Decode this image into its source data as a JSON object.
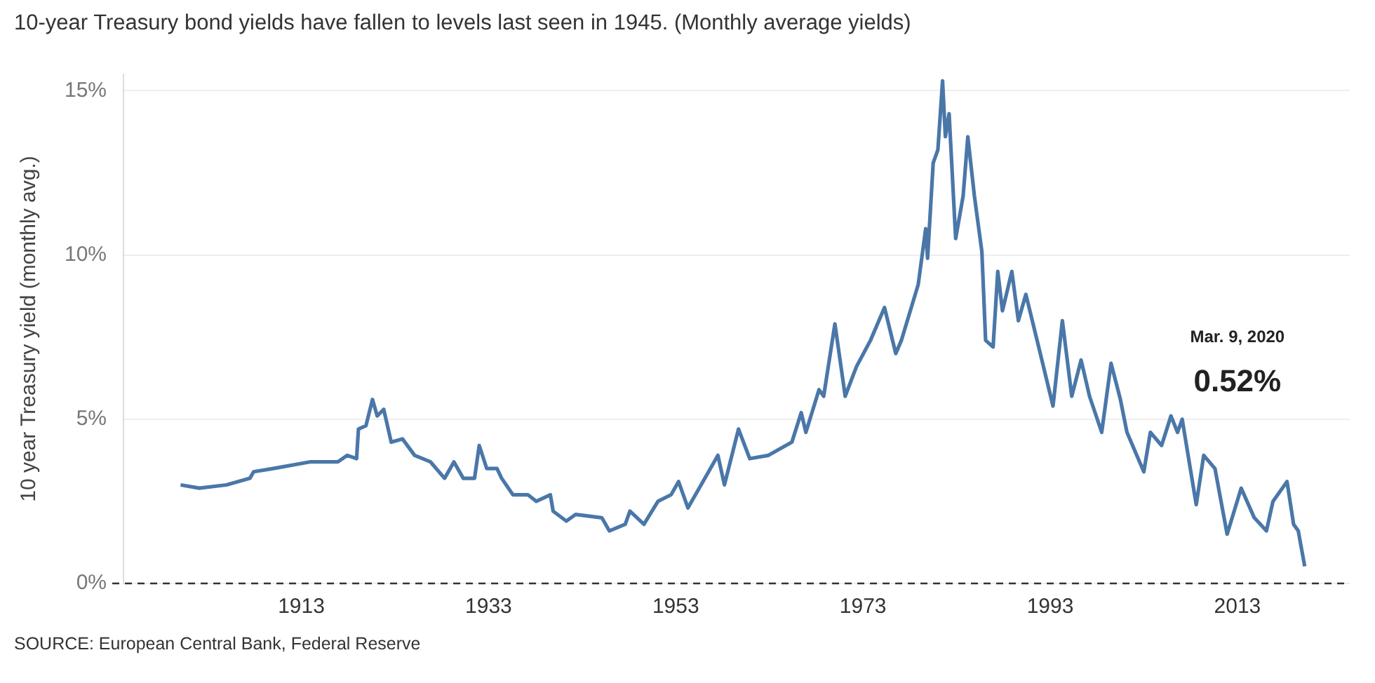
{
  "chart_data": {
    "type": "line",
    "title": "10-year Treasury bond yields have fallen to levels last seen in 1945. (Monthly average yields)",
    "ylabel": "10 year Treasury yield (monthly avg.)",
    "annotations": [
      "Mar. 9, 2020",
      "0.52%",
      "SOURCE: European Central Bank, Federal Reserve"
    ],
    "x": [
      1900.1,
      1902.1,
      1905.0,
      1907.5,
      1907.9,
      1910.0,
      1913.9,
      1916.9,
      1917.9,
      1918.9,
      1919.1,
      1919.9,
      1920.6,
      1921.1,
      1921.8,
      1922.6,
      1923.8,
      1925.1,
      1926.8,
      1928.3,
      1929.3,
      1930.3,
      1931.5,
      1932.0,
      1932.8,
      1933.9,
      1934.4,
      1935.6,
      1937.2,
      1938.1,
      1939.6,
      1939.9,
      1941.3,
      1942.3,
      1945.1,
      1945.9,
      1947.6,
      1948.1,
      1949.6,
      1951.1,
      1952.5,
      1953.3,
      1954.3,
      1955.5,
      1957.5,
      1958.2,
      1959.7,
      1960.9,
      1962.9,
      1965.4,
      1966.4,
      1966.9,
      1968.3,
      1968.8,
      1970.0,
      1971.1,
      1972.3,
      1973.8,
      1975.3,
      1976.5,
      1977.1,
      1978.9,
      1979.7,
      1979.9,
      1980.5,
      1981.0,
      1981.5,
      1981.8,
      1982.2,
      1982.9,
      1983.7,
      1984.2,
      1984.9,
      1985.7,
      1986.1,
      1986.9,
      1987.4,
      1987.9,
      1988.9,
      1989.6,
      1990.4,
      1991.6,
      1993.3,
      1994.3,
      1995.3,
      1996.3,
      1997.2,
      1998.5,
      1999.5,
      2000.5,
      2001.2,
      2003.0,
      2003.7,
      2004.9,
      2005.9,
      2006.6,
      2007.1,
      2008.6,
      2009.4,
      2010.6,
      2011.9,
      2013.4,
      2014.8,
      2016.1,
      2016.8,
      2018.3,
      2019.0,
      2019.5,
      2020.19
    ],
    "series": [
      {
        "color": "#4a77a8",
        "values": [
          3.0,
          2.9,
          3.0,
          3.2,
          3.4,
          3.5,
          3.7,
          3.7,
          3.9,
          3.8,
          4.7,
          4.8,
          5.6,
          5.1,
          5.3,
          4.3,
          4.4,
          3.9,
          3.7,
          3.2,
          3.7,
          3.2,
          3.2,
          4.2,
          3.5,
          3.5,
          3.2,
          2.7,
          2.7,
          2.5,
          2.7,
          2.2,
          1.9,
          2.1,
          2.0,
          1.6,
          1.8,
          2.2,
          1.8,
          2.5,
          2.7,
          3.1,
          2.3,
          2.9,
          3.9,
          3.0,
          4.7,
          3.8,
          3.9,
          4.3,
          5.2,
          4.6,
          5.9,
          5.7,
          7.9,
          5.7,
          6.6,
          7.4,
          8.4,
          7.0,
          7.4,
          9.1,
          10.8,
          9.9,
          12.8,
          13.2,
          15.3,
          13.6,
          14.3,
          10.5,
          11.8,
          13.6,
          11.8,
          10.1,
          7.4,
          7.2,
          9.5,
          8.3,
          9.5,
          8.0,
          8.8,
          7.4,
          5.4,
          8.0,
          5.7,
          6.8,
          5.7,
          4.6,
          6.7,
          5.6,
          4.6,
          3.4,
          4.6,
          4.2,
          5.1,
          4.6,
          5.0,
          2.4,
          3.9,
          3.5,
          1.5,
          2.9,
          2.0,
          1.6,
          2.5,
          3.1,
          1.8,
          1.6,
          0.52
        ]
      }
    ],
    "xlim": [
      1894,
      2025
    ],
    "xticks": [
      1913,
      1933,
      1953,
      1973,
      1993,
      2013
    ],
    "ylim": [
      0,
      15.5
    ],
    "yticks": [
      {
        "value": 0,
        "label": "0%"
      },
      {
        "value": 5,
        "label": "5%"
      },
      {
        "value": 10,
        "label": "10%"
      },
      {
        "value": 15,
        "label": "15%"
      }
    ],
    "ref_lines": [
      {
        "axis": "y",
        "value": 0,
        "color": "#333333",
        "line_style": "dashed"
      }
    ],
    "grid": "y",
    "legend": false,
    "marker": "none",
    "line_style": "solid"
  }
}
